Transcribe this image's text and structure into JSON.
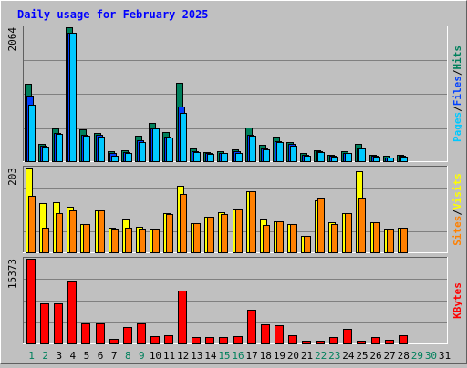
{
  "title": "Daily usage for February 2025",
  "colors": {
    "title": "#0000ff",
    "hits": "#00805c",
    "files": "#0040ff",
    "pages": "#00c8ff",
    "visits": "#ffff00",
    "sites": "#ff8000",
    "kbytes": "#ff0000",
    "weekend_day": "#00805c",
    "weekday": "#000000",
    "panel_bg": "#c0c0c0",
    "grid": "#808080"
  },
  "chart_data": [
    {
      "type": "bar",
      "name": "hits-files-pages",
      "ymax_label": "2064",
      "ylim": [
        0,
        2064
      ],
      "legend": [
        "Pages",
        "/",
        "Files",
        "/",
        "Hits"
      ],
      "categories": [
        "1",
        "2",
        "3",
        "4",
        "5",
        "6",
        "7",
        "8",
        "9",
        "10",
        "11",
        "12",
        "13",
        "14",
        "15",
        "16",
        "17",
        "18",
        "19",
        "20",
        "21",
        "22",
        "23",
        "24",
        "25",
        "26",
        "27",
        "28"
      ],
      "series": [
        {
          "name": "Hits",
          "values": [
            1190,
            260,
            510,
            2064,
            490,
            440,
            150,
            170,
            390,
            590,
            450,
            1210,
            200,
            140,
            150,
            180,
            520,
            250,
            380,
            300,
            120,
            170,
            100,
            160,
            270,
            100,
            80,
            100
          ]
        },
        {
          "name": "Files",
          "values": [
            1010,
            240,
            440,
            1980,
            410,
            410,
            120,
            140,
            320,
            510,
            380,
            840,
            160,
            120,
            130,
            150,
            410,
            200,
            310,
            260,
            100,
            150,
            80,
            130,
            210,
            80,
            60,
            80
          ]
        },
        {
          "name": "Pages",
          "values": [
            870,
            220,
            420,
            1980,
            390,
            380,
            90,
            120,
            300,
            500,
            360,
            750,
            140,
            110,
            120,
            130,
            400,
            180,
            290,
            240,
            90,
            140,
            70,
            120,
            190,
            70,
            50,
            70
          ]
        }
      ]
    },
    {
      "type": "bar",
      "name": "visits-sites",
      "ymax_label": "203",
      "ylim": [
        0,
        203
      ],
      "legend": [
        "Sites",
        "/",
        "Visits"
      ],
      "categories": [
        "1",
        "2",
        "3",
        "4",
        "5",
        "6",
        "7",
        "8",
        "9",
        "10",
        "11",
        "12",
        "13",
        "14",
        "15",
        "16",
        "17",
        "18",
        "19",
        "20",
        "21",
        "22",
        "23",
        "24",
        "25",
        "26",
        "27",
        "28"
      ],
      "series": [
        {
          "name": "Visits",
          "values": [
            203,
            117,
            120,
            110,
            68,
            100,
            60,
            80,
            62,
            56,
            94,
            160,
            70,
            86,
            95,
            104,
            147,
            80,
            74,
            68,
            40,
            124,
            72,
            93,
            195,
            73,
            56,
            60
          ]
        },
        {
          "name": "Sites",
          "values": [
            136,
            59,
            93,
            100,
            68,
            100,
            56,
            60,
            56,
            56,
            92,
            140,
            70,
            86,
            92,
            104,
            147,
            65,
            74,
            68,
            40,
            130,
            68,
            93,
            130,
            73,
            56,
            60
          ]
        }
      ]
    },
    {
      "type": "bar",
      "name": "kbytes",
      "ymax_label": "15373",
      "ylim": [
        0,
        15373
      ],
      "legend": [
        "KBytes"
      ],
      "categories": [
        "1",
        "2",
        "3",
        "4",
        "5",
        "6",
        "7",
        "8",
        "9",
        "10",
        "11",
        "12",
        "13",
        "14",
        "15",
        "16",
        "17",
        "18",
        "19",
        "20",
        "21",
        "22",
        "23",
        "24",
        "25",
        "26",
        "27",
        "28"
      ],
      "series": [
        {
          "name": "KBytes",
          "values": [
            15373,
            7230,
            7230,
            11300,
            3570,
            3570,
            850,
            2950,
            3570,
            1250,
            1450,
            9550,
            1150,
            1150,
            1150,
            1300,
            6130,
            3450,
            3290,
            1450,
            450,
            450,
            1200,
            2570,
            560,
            1100,
            720,
            1500
          ]
        }
      ]
    }
  ],
  "x_labels": [
    {
      "day": "1",
      "weekend": true
    },
    {
      "day": "2",
      "weekend": true
    },
    {
      "day": "3",
      "weekend": false
    },
    {
      "day": "4",
      "weekend": false
    },
    {
      "day": "5",
      "weekend": false
    },
    {
      "day": "6",
      "weekend": false
    },
    {
      "day": "7",
      "weekend": false
    },
    {
      "day": "8",
      "weekend": true
    },
    {
      "day": "9",
      "weekend": true
    },
    {
      "day": "10",
      "weekend": false
    },
    {
      "day": "11",
      "weekend": false
    },
    {
      "day": "12",
      "weekend": false
    },
    {
      "day": "13",
      "weekend": false
    },
    {
      "day": "14",
      "weekend": false
    },
    {
      "day": "15",
      "weekend": true
    },
    {
      "day": "16",
      "weekend": true
    },
    {
      "day": "17",
      "weekend": false
    },
    {
      "day": "18",
      "weekend": false
    },
    {
      "day": "19",
      "weekend": false
    },
    {
      "day": "20",
      "weekend": false
    },
    {
      "day": "21",
      "weekend": false
    },
    {
      "day": "22",
      "weekend": true
    },
    {
      "day": "23",
      "weekend": true
    },
    {
      "day": "24",
      "weekend": false
    },
    {
      "day": "25",
      "weekend": false
    },
    {
      "day": "26",
      "weekend": false
    },
    {
      "day": "27",
      "weekend": false
    },
    {
      "day": "28",
      "weekend": false
    },
    {
      "day": "29",
      "weekend": true
    },
    {
      "day": "30",
      "weekend": true
    },
    {
      "day": "31",
      "weekend": false
    }
  ]
}
